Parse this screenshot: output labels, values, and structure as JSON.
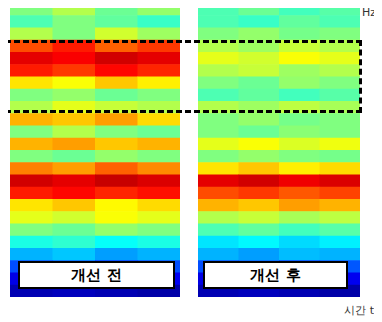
{
  "chart_data": [
    {
      "type": "heatmap",
      "title": "개선 전",
      "xlim": [
        0,
        4
      ],
      "ylim": [
        0,
        24
      ],
      "tick_labels": false,
      "color_range": [
        0,
        1
      ],
      "cells": [
        [
          0.5,
          0.55,
          0.48,
          0.52
        ],
        [
          0.45,
          0.5,
          0.47,
          0.43
        ],
        [
          0.55,
          0.5,
          0.58,
          0.53
        ],
        [
          0.8,
          0.85,
          0.78,
          0.82
        ],
        [
          0.9,
          0.88,
          0.92,
          0.9
        ],
        [
          0.85,
          0.82,
          0.87,
          0.84
        ],
        [
          0.65,
          0.62,
          0.68,
          0.64
        ],
        [
          0.5,
          0.52,
          0.48,
          0.5
        ],
        [
          0.55,
          0.6,
          0.57,
          0.55
        ],
        [
          0.7,
          0.68,
          0.72,
          0.66
        ],
        [
          0.5,
          0.55,
          0.5,
          0.48
        ],
        [
          0.7,
          0.72,
          0.68,
          0.7
        ],
        [
          0.5,
          0.48,
          0.52,
          0.5
        ],
        [
          0.75,
          0.72,
          0.78,
          0.74
        ],
        [
          0.92,
          0.9,
          0.93,
          0.91
        ],
        [
          0.85,
          0.87,
          0.84,
          0.86
        ],
        [
          0.65,
          0.68,
          0.63,
          0.66
        ],
        [
          0.6,
          0.58,
          0.62,
          0.6
        ],
        [
          0.5,
          0.48,
          0.52,
          0.5
        ],
        [
          0.4,
          0.42,
          0.38,
          0.4
        ],
        [
          0.3,
          0.32,
          0.28,
          0.3
        ],
        [
          0.2,
          0.22,
          0.18,
          0.2
        ],
        [
          0.1,
          0.12,
          0.1,
          0.11
        ],
        [
          0.05,
          0.06,
          0.05,
          0.04
        ]
      ]
    },
    {
      "type": "heatmap",
      "title": "개선 후",
      "xlabel": "시간 t",
      "ylabel": "Hz",
      "xlim": [
        0,
        4
      ],
      "ylim": [
        0,
        24
      ],
      "tick_labels": false,
      "color_range": [
        0,
        1
      ],
      "cells": [
        [
          0.45,
          0.48,
          0.44,
          0.46
        ],
        [
          0.45,
          0.43,
          0.47,
          0.45
        ],
        [
          0.5,
          0.52,
          0.49,
          0.5
        ],
        [
          0.55,
          0.53,
          0.57,
          0.55
        ],
        [
          0.6,
          0.58,
          0.62,
          0.6
        ],
        [
          0.55,
          0.57,
          0.53,
          0.55
        ],
        [
          0.5,
          0.48,
          0.52,
          0.5
        ],
        [
          0.45,
          0.47,
          0.44,
          0.46
        ],
        [
          0.55,
          0.53,
          0.56,
          0.54
        ],
        [
          0.5,
          0.52,
          0.49,
          0.5
        ],
        [
          0.5,
          0.48,
          0.51,
          0.5
        ],
        [
          0.6,
          0.62,
          0.59,
          0.61
        ],
        [
          0.5,
          0.52,
          0.5,
          0.49
        ],
        [
          0.65,
          0.68,
          0.64,
          0.66
        ],
        [
          0.9,
          0.92,
          0.89,
          0.91
        ],
        [
          0.8,
          0.82,
          0.79,
          0.81
        ],
        [
          0.7,
          0.68,
          0.72,
          0.7
        ],
        [
          0.55,
          0.57,
          0.54,
          0.56
        ],
        [
          0.45,
          0.47,
          0.44,
          0.46
        ],
        [
          0.35,
          0.37,
          0.34,
          0.36
        ],
        [
          0.3,
          0.28,
          0.31,
          0.3
        ],
        [
          0.2,
          0.22,
          0.19,
          0.21
        ],
        [
          0.1,
          0.12,
          0.1,
          0.11
        ],
        [
          0.05,
          0.06,
          0.05,
          0.04
        ]
      ]
    }
  ],
  "highlight": {
    "y": [
      15,
      21
    ]
  }
}
